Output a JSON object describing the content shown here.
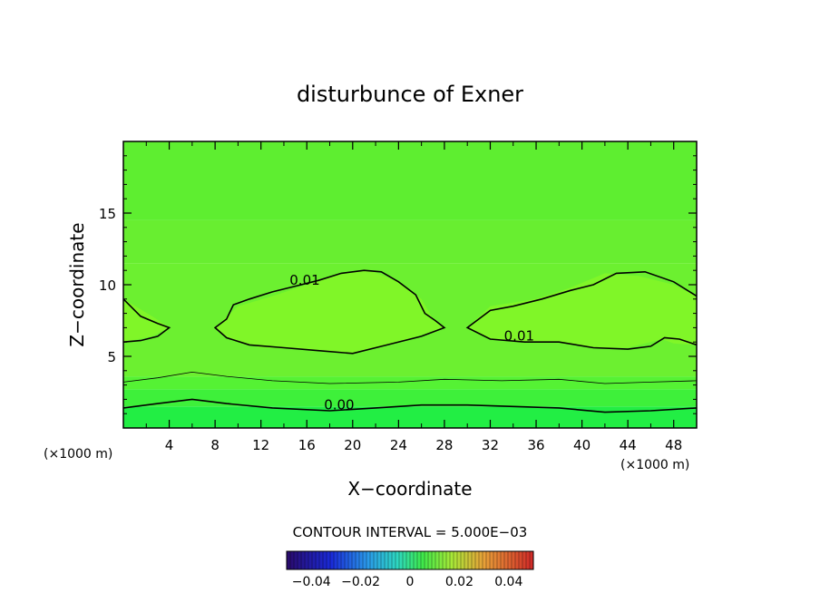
{
  "chart_data": {
    "type": "heatmap",
    "title": "disturbunce of Exner",
    "xlabel": "X−coordinate",
    "ylabel": "Z−coordinate",
    "xlim": [
      0,
      50
    ],
    "ylim": [
      0,
      20
    ],
    "x_ticks": [
      {
        "value": 4,
        "label": "4"
      },
      {
        "value": 8,
        "label": "8"
      },
      {
        "value": 12,
        "label": "12"
      },
      {
        "value": 16,
        "label": "16"
      },
      {
        "value": 20,
        "label": "20"
      },
      {
        "value": 24,
        "label": "24"
      },
      {
        "value": 28,
        "label": "28"
      },
      {
        "value": 32,
        "label": "32"
      },
      {
        "value": 36,
        "label": "36"
      },
      {
        "value": 40,
        "label": "40"
      },
      {
        "value": 44,
        "label": "44"
      },
      {
        "value": 48,
        "label": "48"
      }
    ],
    "y_ticks": [
      {
        "value": 5,
        "label": "5"
      },
      {
        "value": 10,
        "label": "10"
      },
      {
        "value": 15,
        "label": "15"
      }
    ],
    "x_unit_left": "(×1000 m)",
    "x_unit_right": "(×1000 m)",
    "contour_interval_text": "CONTOUR INTERVAL = 5.000E−03",
    "colorbar": {
      "min": -0.05,
      "max": 0.05,
      "ticks": [
        {
          "value": -0.04,
          "label": "−0.04"
        },
        {
          "value": -0.02,
          "label": "−0.02"
        },
        {
          "value": 0,
          "label": "0"
        },
        {
          "value": 0.02,
          "label": "0.02"
        },
        {
          "value": 0.04,
          "label": "0.04"
        }
      ]
    },
    "field_bands": [
      {
        "z_low": 0,
        "z_high": 1.5,
        "color": "#22ee44"
      },
      {
        "z_low": 1.5,
        "z_high": 2.7,
        "color": "#3ef03a"
      },
      {
        "z_low": 2.7,
        "z_high": 3.6,
        "color": "#55f234"
      },
      {
        "z_low": 3.6,
        "z_high": 11.5,
        "color": "#6cf030"
      },
      {
        "z_low": 11.5,
        "z_high": 14.5,
        "color": "#68ee30"
      },
      {
        "z_low": 14.5,
        "z_high": 20,
        "color": "#5eee30"
      }
    ],
    "highlight_regions": [
      {
        "name": "0.01-region-left",
        "color": "#80f628",
        "points": [
          [
            0,
            6
          ],
          [
            2.5,
            6.4
          ],
          [
            4,
            7
          ],
          [
            2.5,
            7.8
          ],
          [
            0,
            9
          ]
        ]
      },
      {
        "name": "0.01-region-center",
        "color": "#80f628",
        "points": [
          [
            8,
            7
          ],
          [
            10,
            8.5
          ],
          [
            13,
            9.2
          ],
          [
            16,
            10
          ],
          [
            19,
            10.8
          ],
          [
            21.5,
            11
          ],
          [
            24,
            10.2
          ],
          [
            26,
            9
          ],
          [
            27,
            7.6
          ],
          [
            28,
            7
          ],
          [
            24,
            6
          ],
          [
            20,
            5.2
          ],
          [
            16,
            5.5
          ],
          [
            12,
            5.6
          ],
          [
            9,
            6.3
          ]
        ]
      },
      {
        "name": "0.01-region-right",
        "color": "#80f628",
        "points": [
          [
            30,
            7
          ],
          [
            32,
            8.5
          ],
          [
            36,
            9
          ],
          [
            39,
            9.8
          ],
          [
            42,
            10.8
          ],
          [
            45,
            10.6
          ],
          [
            48,
            10
          ],
          [
            50,
            9.2
          ],
          [
            50,
            5.8
          ],
          [
            48,
            5.9
          ],
          [
            47,
            6.2
          ],
          [
            44,
            5.6
          ],
          [
            41,
            5.6
          ],
          [
            38,
            6
          ],
          [
            35,
            6
          ],
          [
            32,
            6.2
          ]
        ]
      }
    ],
    "contours": [
      {
        "level": "0.01",
        "label": "0.01",
        "closed": false,
        "points": [
          [
            0,
            9
          ],
          [
            1.5,
            7.8
          ],
          [
            3,
            7.3
          ],
          [
            4,
            7
          ],
          [
            3,
            6.4
          ],
          [
            1.5,
            6.1
          ],
          [
            0,
            6
          ]
        ]
      },
      {
        "level": "0.01",
        "label": "0.01",
        "closed": true,
        "label_at": [
          14.5,
          10
        ],
        "points": [
          [
            8,
            7
          ],
          [
            9,
            7.6
          ],
          [
            9.6,
            8.6
          ],
          [
            11,
            9
          ],
          [
            13,
            9.5
          ],
          [
            15,
            9.9
          ],
          [
            17,
            10.3
          ],
          [
            19,
            10.8
          ],
          [
            21,
            11
          ],
          [
            22.5,
            10.9
          ],
          [
            24,
            10.2
          ],
          [
            25.5,
            9.3
          ],
          [
            26.3,
            8
          ],
          [
            27.2,
            7.5
          ],
          [
            28,
            7
          ],
          [
            26,
            6.4
          ],
          [
            23,
            5.8
          ],
          [
            20,
            5.2
          ],
          [
            17,
            5.4
          ],
          [
            14,
            5.6
          ],
          [
            11,
            5.8
          ],
          [
            9,
            6.3
          ]
        ]
      },
      {
        "level": "0.01",
        "label": "0.01",
        "closed": false,
        "label_at": [
          33.2,
          6.1
        ],
        "points": [
          [
            50,
            9.2
          ],
          [
            48,
            10.2
          ],
          [
            45.5,
            10.9
          ],
          [
            43,
            10.8
          ],
          [
            41,
            10
          ],
          [
            39,
            9.6
          ],
          [
            36.5,
            9
          ],
          [
            34,
            8.5
          ],
          [
            32,
            8.2
          ],
          [
            30,
            7
          ],
          [
            32,
            6.2
          ],
          [
            35,
            6
          ],
          [
            38,
            6
          ],
          [
            41,
            5.6
          ],
          [
            44,
            5.5
          ],
          [
            46,
            5.7
          ],
          [
            47.2,
            6.3
          ],
          [
            48.5,
            6.2
          ],
          [
            50,
            5.8
          ]
        ]
      },
      {
        "level": "0.005",
        "thin": true,
        "closed": false,
        "points": [
          [
            0,
            3.2
          ],
          [
            3,
            3.5
          ],
          [
            6,
            3.9
          ],
          [
            9,
            3.6
          ],
          [
            13,
            3.3
          ],
          [
            18,
            3.1
          ],
          [
            24,
            3.2
          ],
          [
            28,
            3.4
          ],
          [
            33,
            3.3
          ],
          [
            38,
            3.4
          ],
          [
            42,
            3.1
          ],
          [
            46,
            3.2
          ],
          [
            50,
            3.3
          ]
        ]
      },
      {
        "level": "0.00",
        "label": "0.00",
        "closed": false,
        "label_at": [
          17.5,
          1.3
        ],
        "points": [
          [
            0,
            1.4
          ],
          [
            3,
            1.7
          ],
          [
            6,
            2
          ],
          [
            9,
            1.7
          ],
          [
            13,
            1.4
          ],
          [
            18,
            1.2
          ],
          [
            22,
            1.4
          ],
          [
            26,
            1.6
          ],
          [
            30,
            1.6
          ],
          [
            34,
            1.5
          ],
          [
            38,
            1.4
          ],
          [
            42,
            1.1
          ],
          [
            46,
            1.2
          ],
          [
            50,
            1.4
          ]
        ]
      }
    ]
  }
}
